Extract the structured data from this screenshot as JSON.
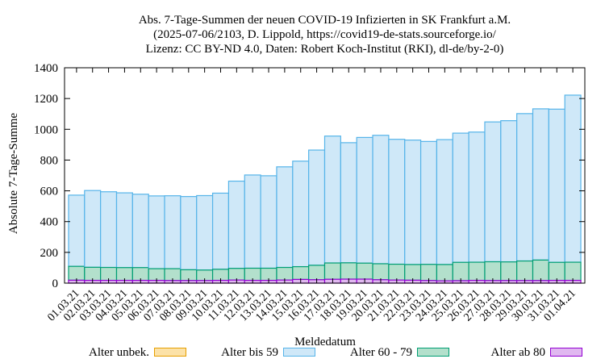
{
  "title_lines": [
    "Abs. 7-Tage-Summen der neuen COVID-19 Infizierten in SK Frankfurt a.M.",
    "(2025-07-06/2103, D. Lippold, https://covid19-de-stats.sourceforge.io/",
    "Lizenz: CC BY-ND 4.0, Daten: Robert Koch-Institut (RKI), dl-de/by-2-0)"
  ],
  "legend": [
    {
      "label": "Alter unbek.",
      "fill": "#fce2a8",
      "stroke": "#e69f00"
    },
    {
      "label": "Alter bis 59",
      "fill": "#cfe8f8",
      "stroke": "#56b4e9"
    },
    {
      "label": "Alter 60 - 79",
      "fill": "#b3e0cc",
      "stroke": "#009e73"
    },
    {
      "label": "Alter ab 80",
      "fill": "#e0b8f0",
      "stroke": "#9400d3"
    }
  ],
  "chart_data": {
    "type": "bar",
    "stacked": true,
    "xlabel": "Meldedatum",
    "ylabel": "Absolute 7-Tage-Summe",
    "ylim": [
      0,
      1400
    ],
    "yticks": [
      0,
      200,
      400,
      600,
      800,
      1000,
      1200,
      1400
    ],
    "grid": false,
    "legend_position": "bottom",
    "categories": [
      "01.03.21",
      "02.03.21",
      "03.03.21",
      "04.03.21",
      "05.03.21",
      "06.03.21",
      "07.03.21",
      "08.03.21",
      "09.03.21",
      "10.03.21",
      "11.03.21",
      "12.03.21",
      "13.03.21",
      "14.03.21",
      "15.03.21",
      "16.03.21",
      "17.03.21",
      "18.03.21",
      "19.03.21",
      "20.03.21",
      "21.03.21",
      "22.03.21",
      "23.03.21",
      "24.03.21",
      "25.03.21",
      "26.03.21",
      "27.03.21",
      "28.03.21",
      "29.03.21",
      "30.03.21",
      "31.03.21",
      "01.04.21"
    ],
    "totals": [
      572,
      602,
      594,
      587,
      578,
      567,
      568,
      563,
      569,
      585,
      663,
      703,
      698,
      756,
      793,
      865,
      956,
      913,
      947,
      961,
      935,
      930,
      921,
      933,
      975,
      982,
      1048,
      1056,
      1102,
      1133,
      1131,
      1222
    ],
    "series": [
      {
        "name": "Alter unbek.",
        "values": [
          0,
          0,
          0,
          0,
          0,
          0,
          0,
          0,
          0,
          0,
          0,
          0,
          0,
          0,
          0,
          0,
          0,
          0,
          0,
          0,
          0,
          0,
          0,
          0,
          0,
          0,
          0,
          0,
          0,
          0,
          0,
          0
        ]
      },
      {
        "name": "Alter bis 59",
        "values": [
          463,
          499,
          492,
          486,
          477,
          473,
          474,
          476,
          484,
          495,
          567,
          606,
          601,
          654,
          686,
          749,
          825,
          781,
          817,
          835,
          812,
          809,
          799,
          812,
          840,
          846,
          909,
          918,
          958,
          983,
          996,
          1086
        ]
      },
      {
        "name": "Alter 60 - 79",
        "values": [
          90,
          85,
          84,
          83,
          83,
          76,
          77,
          70,
          68,
          72,
          76,
          79,
          79,
          82,
          83,
          94,
          106,
          106,
          104,
          104,
          103,
          102,
          105,
          106,
          119,
          118,
          122,
          121,
          127,
          133,
          117,
          118
        ]
      },
      {
        "name": "Alter ab 80",
        "values": [
          19,
          18,
          18,
          18,
          18,
          18,
          17,
          17,
          17,
          18,
          20,
          18,
          18,
          20,
          24,
          22,
          25,
          26,
          26,
          22,
          20,
          19,
          17,
          15,
          16,
          18,
          17,
          17,
          17,
          17,
          18,
          18
        ]
      }
    ]
  }
}
